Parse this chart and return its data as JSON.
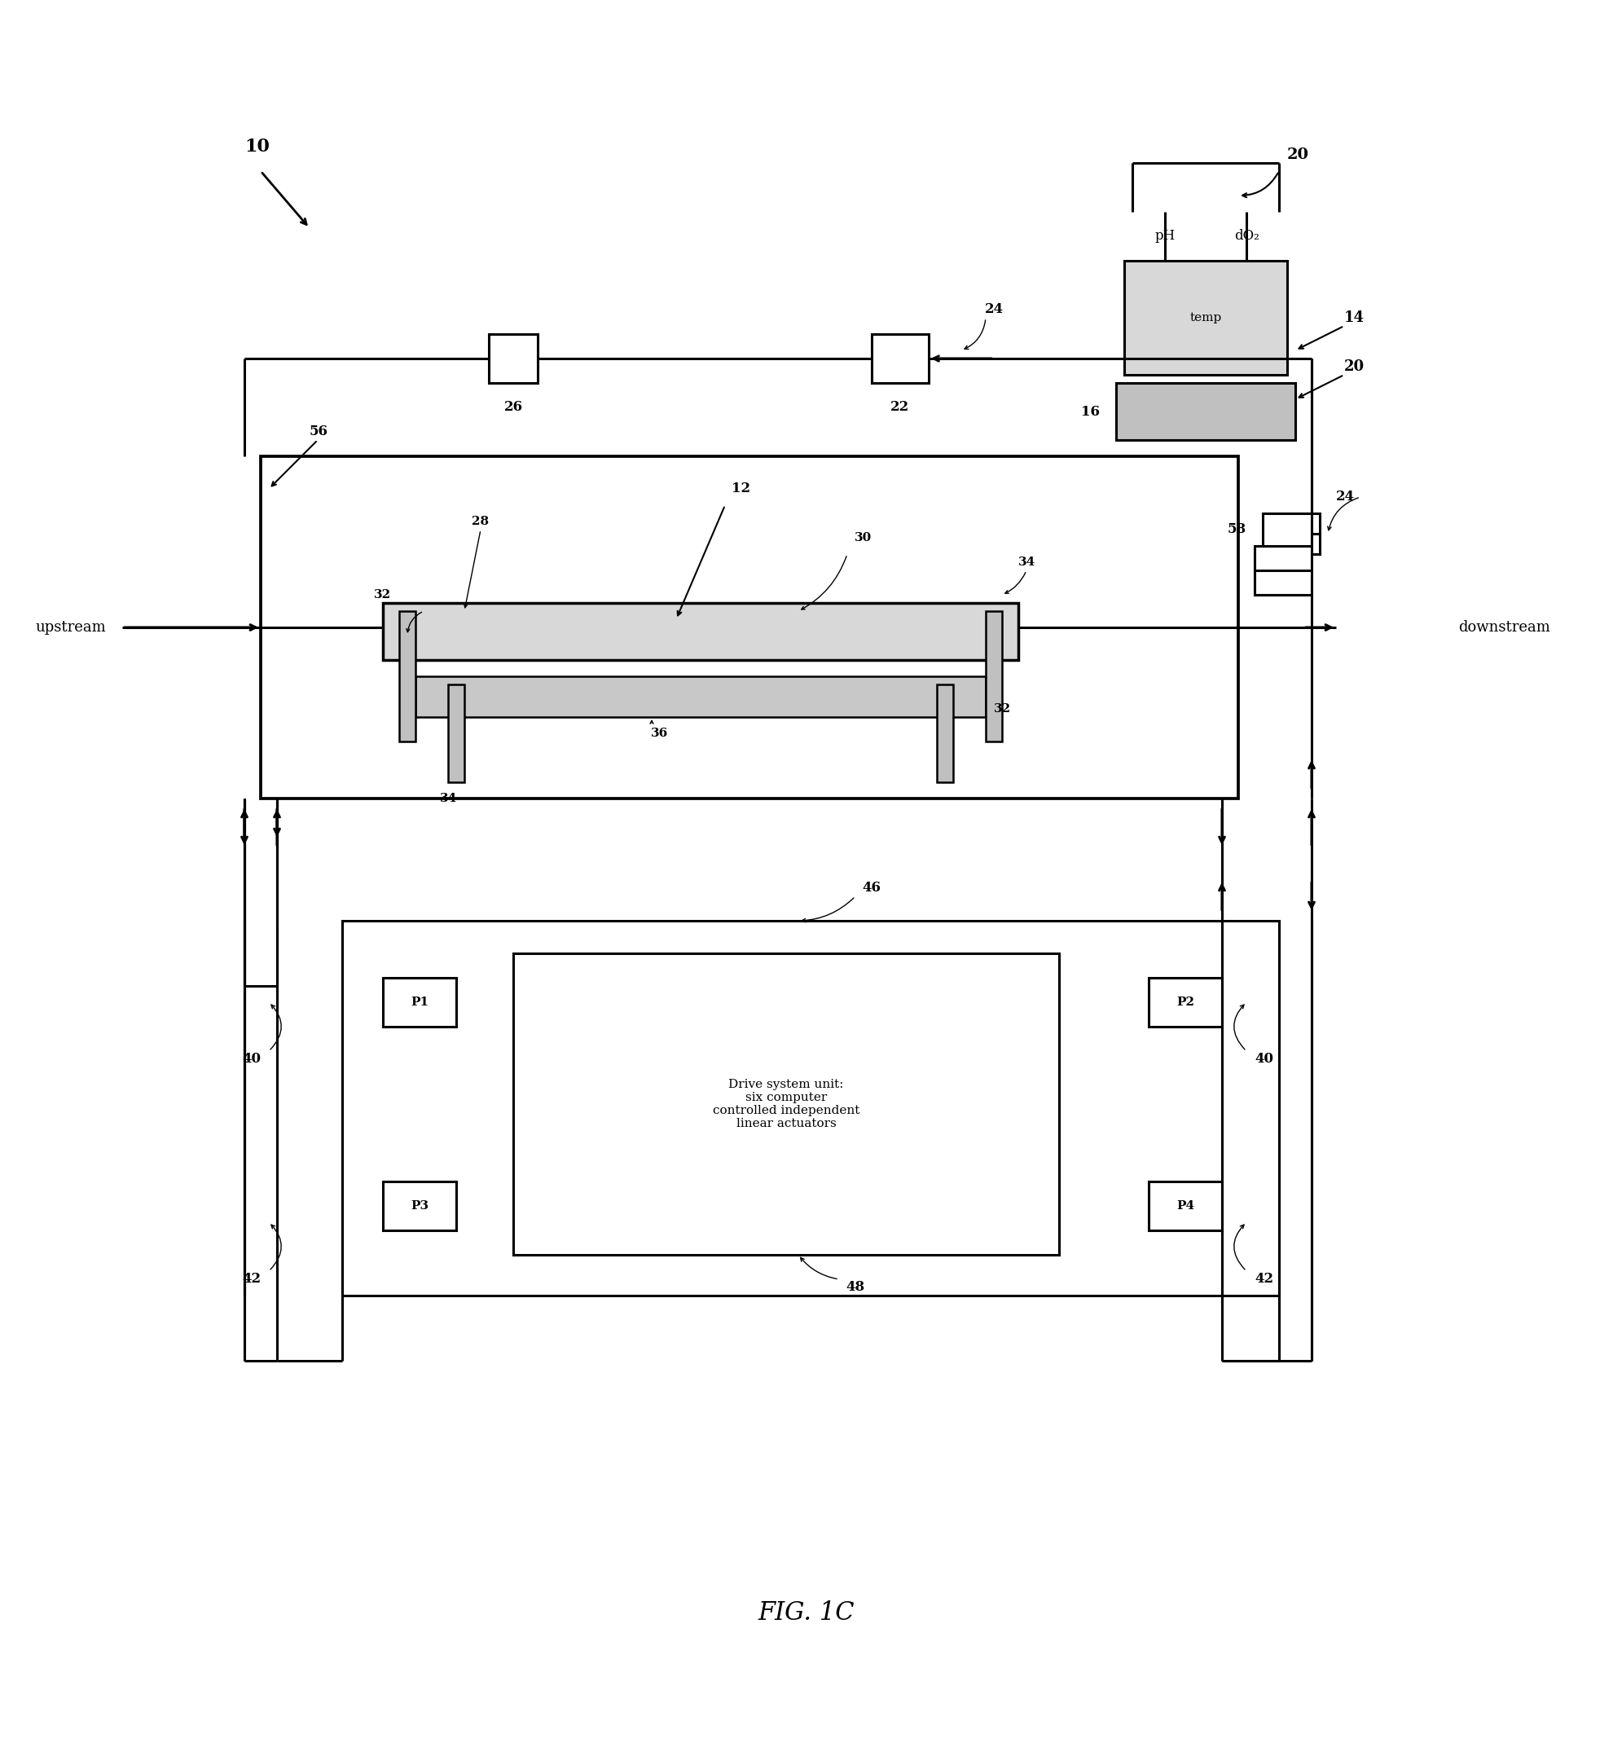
{
  "bg_color": "#ffffff",
  "line_color": "#000000",
  "fig_label": "FIG. 1C",
  "ref_10": "10",
  "ref_12": "12",
  "ref_14": "14",
  "ref_16": "16",
  "ref_20_top": "20",
  "ref_20_side": "20",
  "ref_22": "22",
  "ref_24_top": "24",
  "ref_24_right": "24",
  "ref_26": "26",
  "ref_28": "28",
  "ref_30": "30",
  "ref_32_left": "32",
  "ref_32_right": "32",
  "ref_34_left": "34",
  "ref_34_right": "34",
  "ref_36": "36",
  "ref_40_left": "40",
  "ref_40_right": "40",
  "ref_42_left": "42",
  "ref_42_right": "42",
  "ref_46": "46",
  "ref_48": "48",
  "ref_56": "56",
  "ref_58": "58",
  "label_pH": "pH",
  "label_dO2": "dO₂",
  "label_temp": "temp",
  "label_upstream": "upstream",
  "label_downstream": "downstream",
  "label_P1": "P1",
  "label_P2": "P2",
  "label_P3": "P3",
  "label_P4": "P4",
  "label_drive": "Drive system unit:\nsix computer\ncontrolled independent\nlinear actuators"
}
